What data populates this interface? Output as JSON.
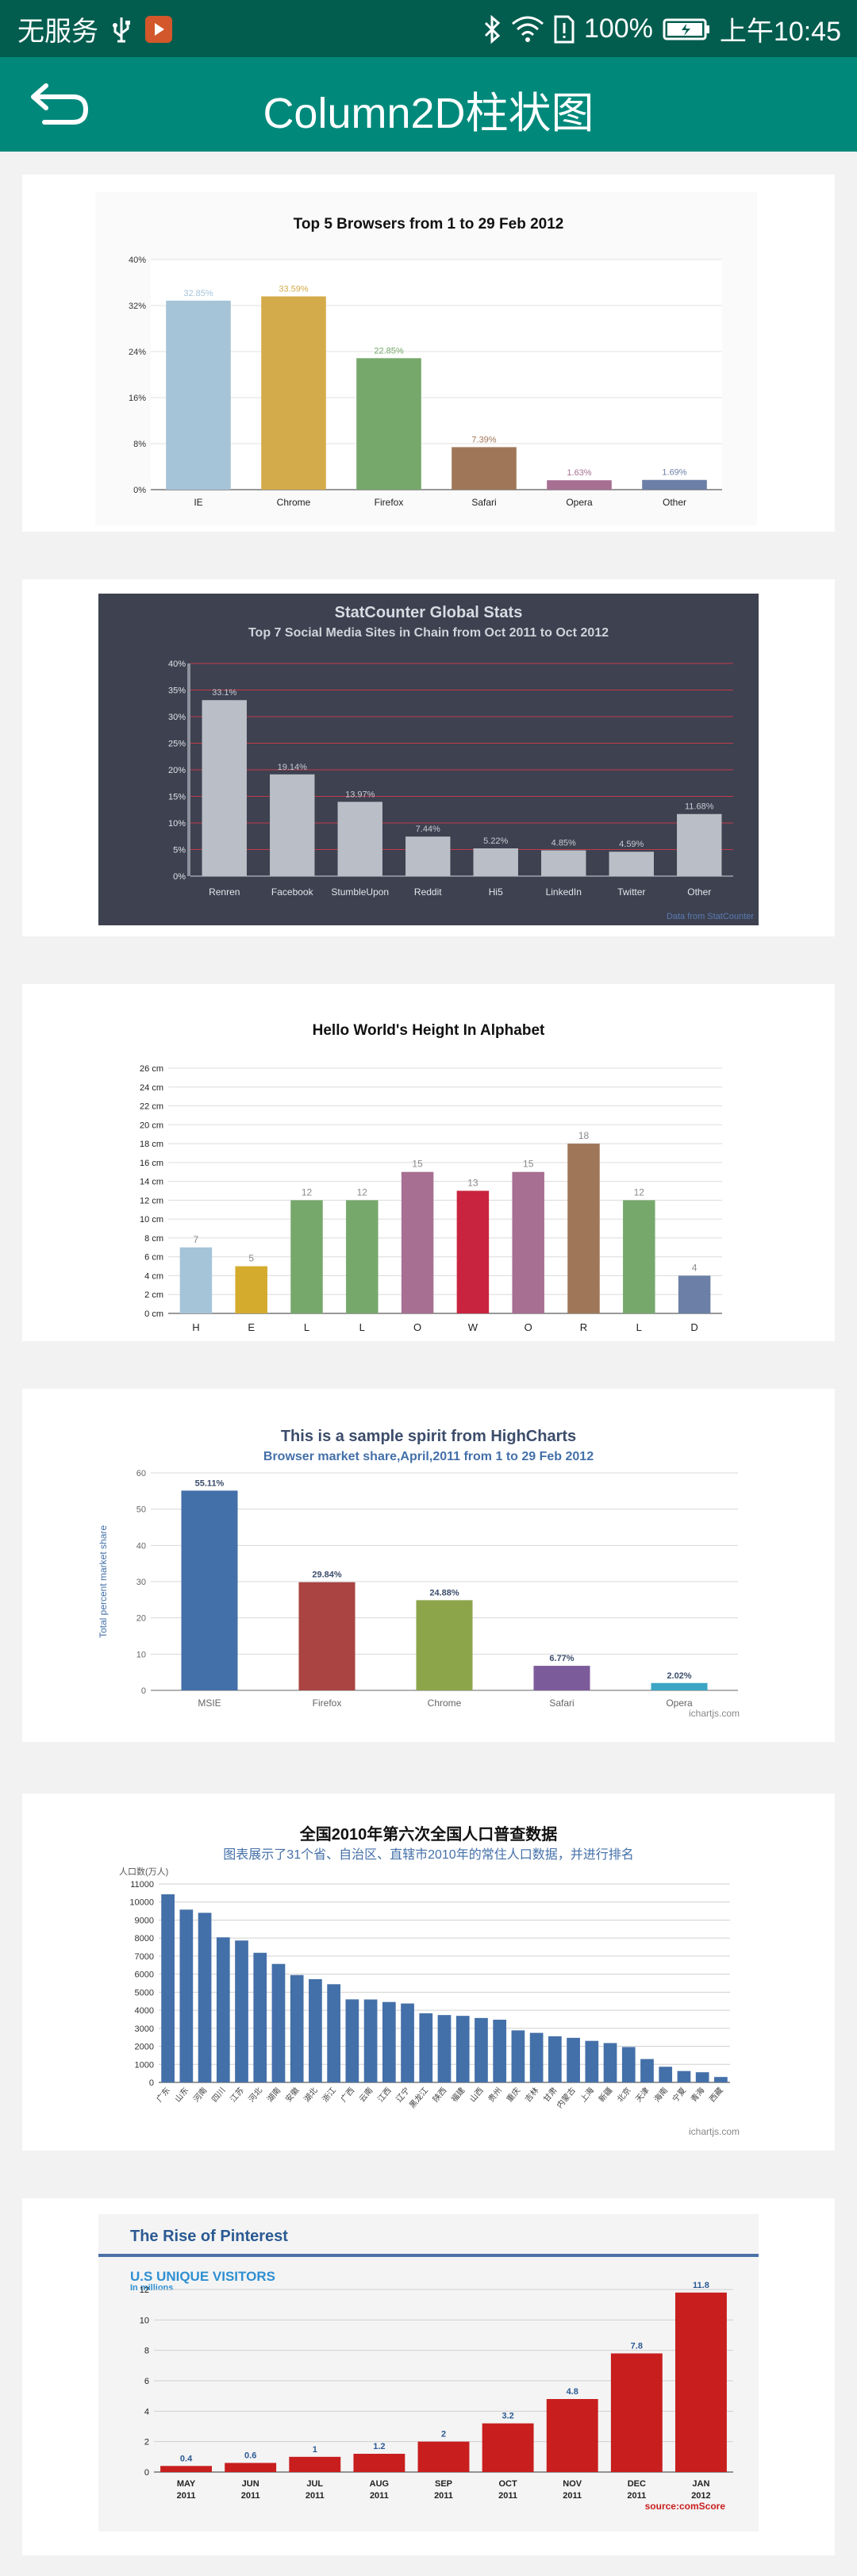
{
  "status_bar": {
    "carrier": "无服务",
    "battery": "100%",
    "time": "上午10:45",
    "icons": [
      "usb-icon",
      "app-notification-icon",
      "bluetooth-icon",
      "wifi-icon",
      "sim-alert-icon",
      "battery-icon"
    ]
  },
  "toolbar": {
    "title": "Column2D柱状图",
    "back_icon": "back-arrow-icon"
  },
  "colors": {
    "status_bar": "#025d4f",
    "toolbar": "#00897b"
  },
  "chart_data": [
    {
      "type": "bar",
      "title": "Top 5 Browsers from 1 to 29 Feb 2012",
      "categories": [
        "IE",
        "Chrome",
        "Firefox",
        "Safari",
        "Opera",
        "Other"
      ],
      "values": [
        32.85,
        33.59,
        22.85,
        7.39,
        1.63,
        1.69
      ],
      "labels": [
        "32.85%",
        "33.59%",
        "22.85%",
        "7.39%",
        "1.63%",
        "1.69%"
      ],
      "colors": [
        "#a6c4d8",
        "#d4ab4a",
        "#76a86b",
        "#9f7758",
        "#a76f92",
        "#6c7fa6"
      ],
      "ylim": [
        0,
        40
      ],
      "yticks": [
        "0%",
        "8%",
        "16%",
        "24%",
        "32%",
        "40%"
      ],
      "grid": true
    },
    {
      "type": "bar",
      "title": "StatCounter Global Stats",
      "subtitle": "Top 7 Social Media Sites in Chain from Oct 2011 to Oct 2012",
      "categories": [
        "Renren",
        "Facebook",
        "StumbleUpon",
        "Reddit",
        "Hi5",
        "LinkedIn",
        "Twitter",
        "Other"
      ],
      "values": [
        33.1,
        19.14,
        13.97,
        7.44,
        5.22,
        4.85,
        4.59,
        11.68
      ],
      "labels": [
        "33.1%",
        "19.14%",
        "13.97%",
        "7.44%",
        "5.22%",
        "4.85%",
        "4.59%",
        "11.68%"
      ],
      "colors": [
        "#b9bec7"
      ],
      "ylim": [
        0,
        40
      ],
      "yticks": [
        "0%",
        "5%",
        "10%",
        "15%",
        "20%",
        "25%",
        "30%",
        "35%",
        "40%"
      ],
      "credit": "Data from StatCounter",
      "grid": true
    },
    {
      "type": "bar",
      "title": "Hello World's Height In Alphabet",
      "categories": [
        "H",
        "E",
        "L",
        "L",
        "O",
        "W",
        "O",
        "R",
        "L",
        "D"
      ],
      "values": [
        7,
        5,
        12,
        12,
        15,
        13,
        15,
        18,
        12,
        4
      ],
      "labels": [
        "7",
        "5",
        "12",
        "12",
        "15",
        "13",
        "15",
        "18",
        "12",
        "4"
      ],
      "colors": [
        "#a6c4d8",
        "#d4ab2c",
        "#76a86b",
        "#76a86b",
        "#a76f92",
        "#c9243f",
        "#a76f92",
        "#9f7758",
        "#76a86b",
        "#6c7fa6"
      ],
      "ylim": [
        0,
        26
      ],
      "yticks": [
        "0 cm",
        "2 cm",
        "4 cm",
        "6 cm",
        "8 cm",
        "10 cm",
        "12 cm",
        "14 cm",
        "16 cm",
        "18 cm",
        "20 cm",
        "22 cm",
        "24 cm",
        "26 cm"
      ],
      "grid": true
    },
    {
      "type": "bar",
      "title": "This is a sample spirit from HighCharts",
      "subtitle": "Browser market share,April,2011 from 1 to 29 Feb 2012",
      "ylabel": "Total percent market share",
      "categories": [
        "MSIE",
        "Firefox",
        "Chrome",
        "Safari",
        "Opera"
      ],
      "values": [
        55.11,
        29.84,
        24.88,
        6.77,
        2.02
      ],
      "labels": [
        "55.11%",
        "29.84%",
        "24.88%",
        "6.77%",
        "2.02%"
      ],
      "colors": [
        "#4470a9",
        "#a94442",
        "#8da54a",
        "#7c5b9b",
        "#3ba5c4"
      ],
      "ylim": [
        0,
        60
      ],
      "yticks": [
        "0",
        "10",
        "20",
        "30",
        "40",
        "50",
        "60"
      ],
      "credit": "ichartjs.com",
      "grid": true
    },
    {
      "type": "bar",
      "title": "全国2010年第六次全国人口普查数据",
      "subtitle": "图表展示了31个省、自治区、直辖市2010年的常住人口数据，并进行排名",
      "ylabel": "人口数(万人)",
      "categories": [
        "广东",
        "山东",
        "河南",
        "四川",
        "江苏",
        "河北",
        "湖南",
        "安徽",
        "湖北",
        "浙江",
        "广西",
        "云南",
        "江西",
        "辽宁",
        "黑龙江",
        "陕西",
        "福建",
        "山西",
        "贵州",
        "重庆",
        "吉林",
        "甘肃",
        "内蒙古",
        "上海",
        "新疆",
        "北京",
        "天津",
        "海南",
        "宁夏",
        "青海",
        "西藏"
      ],
      "values": [
        10430,
        9579,
        9402,
        8042,
        7866,
        7185,
        6568,
        5950,
        5724,
        5443,
        4603,
        4597,
        4457,
        4375,
        3831,
        3733,
        3689,
        3571,
        3475,
        2885,
        2746,
        2558,
        2471,
        2302,
        2181,
        1961,
        1294,
        867,
        630,
        563,
        300
      ],
      "colors": [
        "#4470a9"
      ],
      "ylim": [
        0,
        11000
      ],
      "yticks": [
        "0",
        "1000",
        "2000",
        "3000",
        "4000",
        "5000",
        "6000",
        "7000",
        "8000",
        "9000",
        "10000",
        "11000"
      ],
      "credit": "ichartjs.com",
      "grid": true
    },
    {
      "type": "bar",
      "title": "The Rise of Pinterest",
      "subtitle": "U.S UNIQUE VISITORS",
      "unit_note": "In millions",
      "categories": [
        "MAY\n2011",
        "JUN\n2011",
        "JUL\n2011",
        "AUG\n2011",
        "SEP\n2011",
        "OCT\n2011",
        "NOV\n2011",
        "DEC\n2011",
        "JAN\n2012"
      ],
      "values": [
        0.4,
        0.6,
        1,
        1.2,
        2,
        3.2,
        4.8,
        7.8,
        11.8
      ],
      "labels": [
        "0.4",
        "0.6",
        "1",
        "1.2",
        "2",
        "3.2",
        "4.8",
        "7.8",
        "11.8"
      ],
      "colors": [
        "#c81e1e"
      ],
      "ylim": [
        0,
        12
      ],
      "yticks": [
        "0",
        "2",
        "4",
        "6",
        "8",
        "10",
        "12"
      ],
      "credit": "source:comScore",
      "grid": true
    }
  ]
}
